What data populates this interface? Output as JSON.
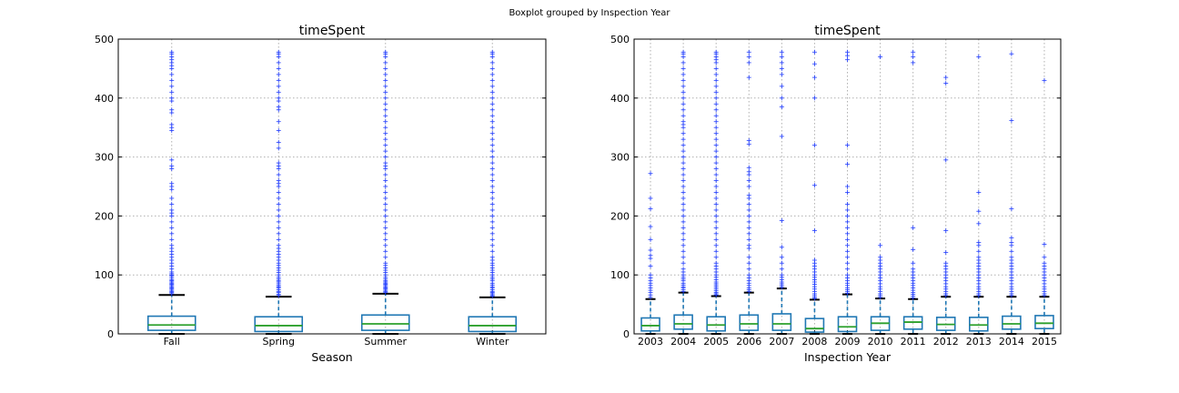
{
  "figure": {
    "suptitle": "Boxplot grouped by Inspection Year"
  },
  "chart_data": [
    {
      "type": "box",
      "title": "timeSpent",
      "xlabel": "Season",
      "ylabel": "",
      "ylim": [
        0,
        500
      ],
      "yticks": [
        0,
        100,
        200,
        300,
        400,
        500
      ],
      "grid": true,
      "categories": [
        "Fall",
        "Spring",
        "Summer",
        "Winter"
      ],
      "boxes": [
        {
          "q1": 6,
          "median": 15,
          "q3": 30,
          "whisker_low": 0,
          "whisker_high": 66,
          "fliers": [
            68,
            70,
            72,
            74,
            76,
            78,
            80,
            82,
            84,
            86,
            88,
            90,
            92,
            95,
            98,
            100,
            102,
            105,
            110,
            115,
            120,
            125,
            130,
            135,
            140,
            145,
            150,
            160,
            170,
            180,
            190,
            200,
            205,
            210,
            220,
            230,
            245,
            250,
            255,
            280,
            285,
            295,
            345,
            350,
            355,
            375,
            380,
            395,
            400,
            410,
            420,
            430,
            440,
            450,
            455,
            460,
            465,
            470,
            475,
            478
          ]
        },
        {
          "q1": 4,
          "median": 14,
          "q3": 29,
          "whisker_low": 0,
          "whisker_high": 63,
          "fliers": [
            65,
            67,
            70,
            72,
            75,
            78,
            80,
            82,
            85,
            88,
            90,
            93,
            96,
            100,
            104,
            108,
            112,
            116,
            120,
            125,
            130,
            135,
            140,
            145,
            150,
            160,
            170,
            180,
            190,
            200,
            210,
            220,
            230,
            240,
            250,
            255,
            260,
            270,
            280,
            285,
            290,
            315,
            325,
            345,
            360,
            380,
            385,
            395,
            400,
            410,
            420,
            430,
            440,
            450,
            460,
            470,
            475,
            478
          ]
        },
        {
          "q1": 6,
          "median": 17,
          "q3": 32,
          "whisker_low": 0,
          "whisker_high": 68,
          "fliers": [
            70,
            72,
            74,
            76,
            78,
            80,
            82,
            84,
            86,
            88,
            90,
            93,
            96,
            100,
            104,
            108,
            112,
            116,
            120,
            130,
            140,
            150,
            160,
            170,
            180,
            190,
            200,
            210,
            220,
            230,
            240,
            250,
            260,
            270,
            280,
            285,
            290,
            300,
            310,
            320,
            330,
            340,
            350,
            360,
            370,
            380,
            390,
            400,
            410,
            420,
            430,
            440,
            450,
            460,
            470,
            475,
            478
          ]
        },
        {
          "q1": 4,
          "median": 14,
          "q3": 29,
          "whisker_low": 0,
          "whisker_high": 62,
          "fliers": [
            64,
            66,
            68,
            70,
            72,
            75,
            78,
            80,
            83,
            86,
            90,
            93,
            96,
            100,
            104,
            108,
            112,
            116,
            120,
            125,
            130,
            140,
            150,
            160,
            170,
            180,
            190,
            200,
            210,
            220,
            230,
            240,
            250,
            260,
            270,
            280,
            290,
            300,
            310,
            320,
            330,
            340,
            350,
            360,
            370,
            380,
            390,
            400,
            410,
            420,
            430,
            440,
            450,
            460,
            470,
            475,
            478
          ]
        }
      ]
    },
    {
      "type": "box",
      "title": "timeSpent",
      "xlabel": "Inspection Year",
      "ylabel": "",
      "ylim": [
        0,
        500
      ],
      "yticks": [
        0,
        100,
        200,
        300,
        400,
        500
      ],
      "grid": true,
      "categories": [
        "2003",
        "2004",
        "2005",
        "2006",
        "2007",
        "2008",
        "2009",
        "2010",
        "2011",
        "2012",
        "2013",
        "2014",
        "2015"
      ],
      "boxes": [
        {
          "q1": 5,
          "median": 14,
          "q3": 27,
          "whisker_low": 0,
          "whisker_high": 59,
          "fliers": [
            62,
            66,
            70,
            74,
            78,
            82,
            86,
            90,
            95,
            100,
            115,
            128,
            133,
            142,
            160,
            182,
            212,
            230,
            272
          ]
        },
        {
          "q1": 8,
          "median": 17,
          "q3": 32,
          "whisker_low": 0,
          "whisker_high": 70,
          "fliers": [
            72,
            75,
            78,
            80,
            83,
            86,
            90,
            93,
            96,
            100,
            105,
            110,
            120,
            130,
            140,
            150,
            160,
            170,
            180,
            190,
            200,
            210,
            220,
            230,
            240,
            250,
            260,
            270,
            280,
            290,
            300,
            310,
            320,
            330,
            340,
            350,
            355,
            360,
            370,
            380,
            390,
            400,
            410,
            420,
            430,
            440,
            450,
            460,
            470,
            475,
            478
          ]
        },
        {
          "q1": 5,
          "median": 15,
          "q3": 29,
          "whisker_low": 0,
          "whisker_high": 64,
          "fliers": [
            66,
            68,
            70,
            73,
            76,
            79,
            82,
            85,
            88,
            92,
            96,
            100,
            105,
            110,
            115,
            120,
            130,
            140,
            150,
            160,
            170,
            180,
            190,
            200,
            210,
            220,
            230,
            240,
            250,
            260,
            270,
            280,
            290,
            300,
            310,
            320,
            330,
            340,
            350,
            360,
            370,
            380,
            390,
            400,
            410,
            420,
            430,
            440,
            450,
            460,
            465,
            470,
            475,
            478
          ]
        },
        {
          "q1": 6,
          "median": 17,
          "q3": 32,
          "whisker_low": 0,
          "whisker_high": 70,
          "fliers": [
            72,
            75,
            78,
            82,
            86,
            90,
            95,
            100,
            110,
            120,
            130,
            145,
            150,
            160,
            170,
            180,
            190,
            200,
            210,
            220,
            230,
            235,
            250,
            260,
            270,
            275,
            282,
            322,
            328,
            435,
            460,
            470,
            478
          ]
        },
        {
          "q1": 6,
          "median": 17,
          "q3": 34,
          "whisker_low": 0,
          "whisker_high": 77,
          "fliers": [
            79,
            82,
            85,
            88,
            92,
            96,
            100,
            110,
            120,
            130,
            147,
            192,
            335,
            385,
            400,
            420,
            440,
            450,
            460,
            470,
            478
          ]
        },
        {
          "q1": 3,
          "median": 9,
          "q3": 26,
          "whisker_low": 0,
          "whisker_high": 58,
          "fliers": [
            60,
            62,
            65,
            68,
            72,
            76,
            80,
            84,
            88,
            92,
            96,
            100,
            105,
            110,
            115,
            120,
            125,
            175,
            252,
            320,
            400,
            435,
            458,
            478
          ]
        },
        {
          "q1": 4,
          "median": 12,
          "q3": 29,
          "whisker_low": 0,
          "whisker_high": 67,
          "fliers": [
            69,
            72,
            75,
            78,
            82,
            86,
            90,
            95,
            100,
            110,
            120,
            130,
            140,
            150,
            160,
            170,
            180,
            190,
            200,
            210,
            220,
            240,
            250,
            288,
            320,
            465,
            472,
            478
          ]
        },
        {
          "q1": 6,
          "median": 18,
          "q3": 29,
          "whisker_low": 0,
          "whisker_high": 60,
          "fliers": [
            62,
            65,
            68,
            72,
            76,
            80,
            85,
            90,
            95,
            100,
            105,
            110,
            115,
            120,
            125,
            130,
            150,
            470
          ]
        },
        {
          "q1": 8,
          "median": 20,
          "q3": 29,
          "whisker_low": 0,
          "whisker_high": 59,
          "fliers": [
            61,
            64,
            67,
            70,
            74,
            78,
            82,
            86,
            90,
            95,
            100,
            105,
            110,
            120,
            143,
            180,
            460,
            470,
            478
          ]
        },
        {
          "q1": 6,
          "median": 16,
          "q3": 28,
          "whisker_low": 0,
          "whisker_high": 63,
          "fliers": [
            65,
            68,
            72,
            76,
            80,
            85,
            90,
            95,
            100,
            105,
            110,
            115,
            120,
            138,
            175,
            295,
            425,
            435
          ]
        },
        {
          "q1": 5,
          "median": 15,
          "q3": 28,
          "whisker_low": 0,
          "whisker_high": 63,
          "fliers": [
            65,
            68,
            72,
            76,
            80,
            85,
            90,
            95,
            100,
            105,
            110,
            115,
            120,
            125,
            130,
            140,
            150,
            155,
            187,
            208,
            240,
            470
          ]
        },
        {
          "q1": 8,
          "median": 17,
          "q3": 30,
          "whisker_low": 0,
          "whisker_high": 63,
          "fliers": [
            65,
            68,
            72,
            76,
            80,
            85,
            90,
            95,
            100,
            105,
            110,
            115,
            120,
            125,
            130,
            140,
            150,
            155,
            163,
            212,
            362,
            475
          ]
        },
        {
          "q1": 9,
          "median": 18,
          "q3": 31,
          "whisker_low": 0,
          "whisker_high": 63,
          "fliers": [
            65,
            68,
            72,
            76,
            80,
            85,
            90,
            95,
            100,
            105,
            110,
            115,
            120,
            130,
            152,
            430
          ]
        }
      ]
    }
  ]
}
